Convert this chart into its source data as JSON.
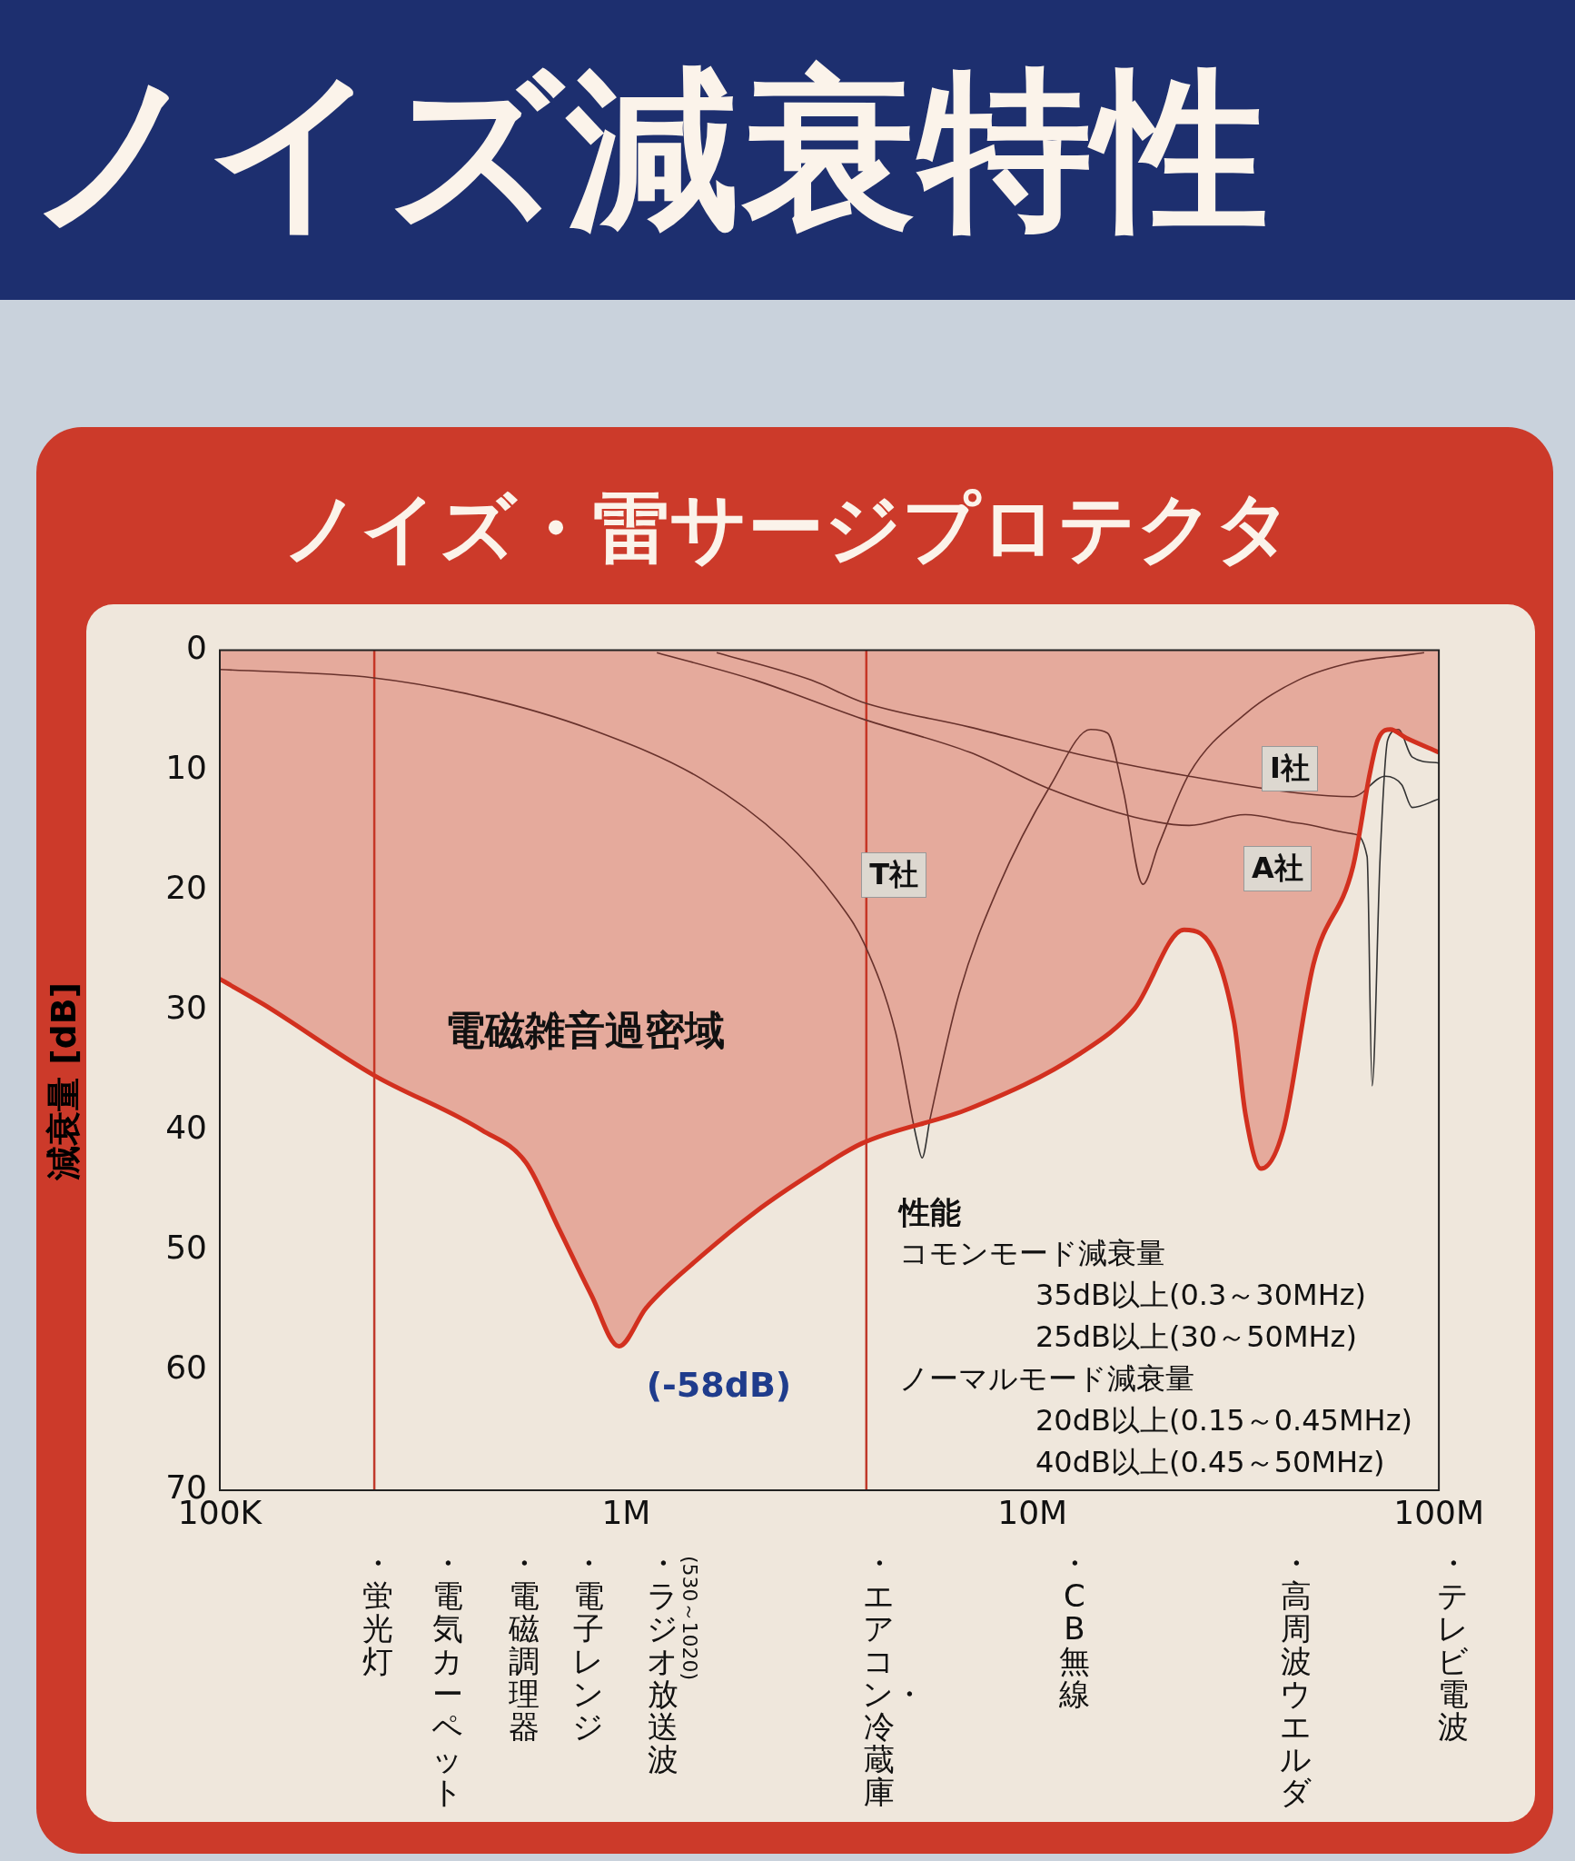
{
  "chart_data": {
    "type": "line",
    "title": "ノイズ減衰特性",
    "subtitle": "ノイズ・雷サージプロテクタ",
    "ylabel": "減衰量 [dB]",
    "xlim": [
      100000,
      100000000
    ],
    "xticks": [
      {
        "value": 100000,
        "label": "100K"
      },
      {
        "value": 1000000,
        "label": "1M"
      },
      {
        "value": 10000000,
        "label": "10M"
      },
      {
        "value": 100000000,
        "label": "100M"
      }
    ],
    "ylim": [
      70,
      0
    ],
    "yticks": [
      0,
      10,
      20,
      30,
      40,
      50,
      60,
      70
    ],
    "log": "x",
    "grid": false,
    "legend": false,
    "marker": "none",
    "line_style": "solid",
    "series": [
      {
        "type": "area",
        "color": "#d2301f",
        "x": [
          100000,
          128000,
          239000,
          442000,
          567000,
          683000,
          820000,
          960000,
          1120000,
          1530000,
          2080000,
          2860000,
          3800000,
          7000000,
          13100000,
          17800000,
          23600000,
          25900000,
          31300000,
          33400000,
          36500000,
          41400000,
          49100000,
          61500000,
          67600000,
          70700000,
          76000000,
          83000000,
          100000000
        ],
        "values": [
          27.4,
          29.5,
          35.4,
          40,
          42.7,
          48.2,
          53.7,
          58,
          54.8,
          50.5,
          46.8,
          43.6,
          41.1,
          38.2,
          33.6,
          29.9,
          23.3,
          23.6,
          30.9,
          38.6,
          43.2,
          40,
          26.2,
          18,
          10.3,
          7.5,
          6.6,
          7.3,
          8.5
        ]
      },
      {
        "name": "T社",
        "color": "#333333",
        "x": [
          100000,
          239000,
          440000,
          820000,
          1530000,
          2440000,
          3300000,
          3860000,
          4600000,
          5200000,
          5350000,
          5600000,
          6600000,
          8200000,
          11100000,
          13900000,
          15300000,
          16700000,
          18700000,
          20400000,
          24300000,
          33400000,
          45000000,
          61500000,
          83000000,
          92000000
        ],
        "values": [
          1.6,
          2.3,
          3.9,
          6.6,
          10.7,
          15.8,
          20.8,
          24.5,
          31.8,
          40.9,
          42.3,
          39,
          28.6,
          19.9,
          11.2,
          6.6,
          6.9,
          11.6,
          19.5,
          16.3,
          10.3,
          5.3,
          2.5,
          1,
          0.4,
          0.2
        ]
      },
      {
        "name": "I社",
        "color": "#333333",
        "x": [
          1670000,
          2860000,
          3800000,
          7000000,
          13100000,
          24300000,
          45000000,
          61500000,
          73800000,
          81000000,
          86000000,
          100000000
        ],
        "values": [
          0.2,
          2.5,
          4.3,
          6.4,
          8.7,
          10.5,
          11.9,
          12.2,
          10.5,
          11.2,
          13.1,
          12.4
        ]
      },
      {
        "name": "A社",
        "color": "#333333",
        "x": [
          1190000,
          2080000,
          3800000,
          7000000,
          11100000,
          17800000,
          24300000,
          33400000,
          45000000,
          61500000,
          66600000,
          68500000,
          71700000,
          74800000,
          79500000,
          86000000,
          100000000
        ],
        "values": [
          0.2,
          2.5,
          5.7,
          8.5,
          11.6,
          13.9,
          14.6,
          13.7,
          14.4,
          15.3,
          17.2,
          36.3,
          17.2,
          7.5,
          6.6,
          8.9,
          9.4
        ]
      }
    ],
    "ref_lines": [
      {
        "axis": "x",
        "value": 240000,
        "color": "#c0392b"
      },
      {
        "axis": "x",
        "value": 3900000,
        "color": "#c0392b"
      }
    ],
    "annotations": [
      "電磁雑音過密域",
      {
        "text": "(-58dB)",
        "x": 960000,
        "y": 58
      },
      "性能",
      "コモンモード減衰量",
      "35dB以上(0.3～30MHz)",
      "25dB以上(30～50MHz)",
      "ノーマルモード減衰量",
      "20dB以上(0.15～0.45MHz)",
      "40dB以上(0.45～50MHz)",
      "・蛍光灯",
      "・電気カーペット",
      "・電磁調理器",
      "・電子レンジ",
      "・ラジオ放送波",
      "(530～1020)",
      "・エアコン・冷蔵庫",
      "・CB無線",
      "・高周波ウエルダ",
      "・テレビ電波"
    ]
  }
}
